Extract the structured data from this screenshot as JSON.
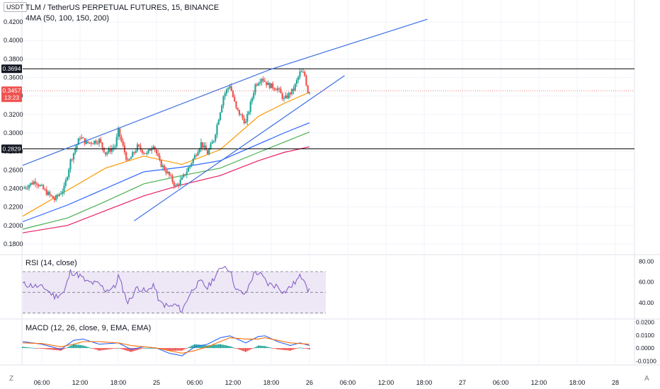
{
  "header": {
    "unit": "USDT",
    "title": "TLM / TetherUS PERPETUAL FUTURES, 15, BINANCE",
    "indicator": "4MA (50, 100, 150, 200)"
  },
  "colors": {
    "up": "#26a69a",
    "down": "#ef5350",
    "ma50": "#ff9800",
    "ma100": "#2962ff",
    "ma150": "#4caf50",
    "ma200": "#e91e63",
    "trend": "#3d6fe0",
    "rsi": "#7e57c2",
    "rsi_band": "#ede7f6",
    "macd": "#2962ff",
    "signal": "#ff6d00",
    "hist_up": "#26a69a",
    "hist_down": "#ef5350",
    "hline": "#000000",
    "last": "#ef5350"
  },
  "corner": {
    "left": "Z",
    "right": "A"
  },
  "chart_data": [
    {
      "type": "candlestick",
      "symbol": "TLM / TetherUS PERPETUAL FUTURES, 15, BINANCE",
      "ylim": [
        0.17,
        0.43
      ],
      "y_ticks": [
        "0.1800",
        "0.2000",
        "0.2200",
        "0.2400",
        "0.2600",
        "0.2800",
        "0.3000",
        "0.3200",
        "0.3400",
        "0.3600",
        "0.3800",
        "0.4000",
        "0.4200"
      ],
      "x_ticks": [
        {
          "t": 6,
          "label": "06:00"
        },
        {
          "t": 12,
          "label": "12:00"
        },
        {
          "t": 18,
          "label": "18:00"
        },
        {
          "t": 24,
          "label": "25"
        },
        {
          "t": 30,
          "label": "06:00"
        },
        {
          "t": 36,
          "label": "12:00"
        },
        {
          "t": 42,
          "label": "18:00"
        },
        {
          "t": 48,
          "label": "26"
        },
        {
          "t": 54,
          "label": "06:00"
        },
        {
          "t": 60,
          "label": "12:00"
        },
        {
          "t": 66,
          "label": "18:00"
        },
        {
          "t": 72,
          "label": "27"
        },
        {
          "t": 78,
          "label": "06:00"
        },
        {
          "t": 84,
          "label": "12:00"
        },
        {
          "t": 90,
          "label": "18:00"
        },
        {
          "t": 96,
          "label": "28"
        }
      ],
      "x_range": [
        3,
        99
      ],
      "keypoints": [
        [
          3,
          0.24
        ],
        [
          5,
          0.248
        ],
        [
          6.5,
          0.237
        ],
        [
          8,
          0.228
        ],
        [
          9.5,
          0.24
        ],
        [
          10.5,
          0.27
        ],
        [
          12,
          0.296
        ],
        [
          13,
          0.289
        ],
        [
          15,
          0.292
        ],
        [
          16,
          0.278
        ],
        [
          17.5,
          0.286
        ],
        [
          18,
          0.302
        ],
        [
          19.5,
          0.268
        ],
        [
          21,
          0.285
        ],
        [
          22.5,
          0.277
        ],
        [
          23.5,
          0.288
        ],
        [
          24.5,
          0.268
        ],
        [
          26,
          0.254
        ],
        [
          27,
          0.242
        ],
        [
          28,
          0.25
        ],
        [
          29,
          0.262
        ],
        [
          30,
          0.275
        ],
        [
          31,
          0.289
        ],
        [
          32,
          0.278
        ],
        [
          33,
          0.293
        ],
        [
          34.5,
          0.34
        ],
        [
          35.5,
          0.352
        ],
        [
          36.5,
          0.326
        ],
        [
          38,
          0.311
        ],
        [
          38.7,
          0.33
        ],
        [
          39.5,
          0.352
        ],
        [
          40.5,
          0.36
        ],
        [
          41.5,
          0.352
        ],
        [
          43,
          0.348
        ],
        [
          44,
          0.336
        ],
        [
          45.5,
          0.347
        ],
        [
          46.5,
          0.365
        ],
        [
          47.2,
          0.364
        ],
        [
          47.8,
          0.343
        ],
        [
          48,
          0.3457
        ]
      ],
      "overlays": {
        "ma50": [
          [
            3,
            0.21
          ],
          [
            10,
            0.238
          ],
          [
            16,
            0.262
          ],
          [
            22,
            0.275
          ],
          [
            28,
            0.266
          ],
          [
            34,
            0.282
          ],
          [
            40,
            0.318
          ],
          [
            44,
            0.332
          ],
          [
            48,
            0.344
          ]
        ],
        "ma100": [
          [
            3,
            0.204
          ],
          [
            10,
            0.222
          ],
          [
            16,
            0.24
          ],
          [
            22,
            0.258
          ],
          [
            28,
            0.263
          ],
          [
            34,
            0.27
          ],
          [
            40,
            0.288
          ],
          [
            44,
            0.3
          ],
          [
            48,
            0.311
          ]
        ],
        "ma150": [
          [
            3,
            0.196
          ],
          [
            10,
            0.208
          ],
          [
            16,
            0.226
          ],
          [
            22,
            0.245
          ],
          [
            28,
            0.254
          ],
          [
            34,
            0.262
          ],
          [
            40,
            0.279
          ],
          [
            44,
            0.29
          ],
          [
            48,
            0.301
          ]
        ],
        "ma200": [
          [
            3,
            0.192
          ],
          [
            10,
            0.2
          ],
          [
            16,
            0.216
          ],
          [
            22,
            0.232
          ],
          [
            28,
            0.244
          ],
          [
            34,
            0.254
          ],
          [
            40,
            0.27
          ],
          [
            44,
            0.279
          ],
          [
            48,
            0.285
          ]
        ]
      },
      "trend_lines": [
        [
          [
            3,
            0.265
          ],
          [
            42,
            0.369
          ]
        ],
        [
          [
            42,
            0.369
          ],
          [
            66.5,
            0.423
          ]
        ],
        [
          [
            20.5,
            0.205
          ],
          [
            53.5,
            0.362
          ]
        ]
      ],
      "horizontal_lines": [
        0.3694,
        0.2829
      ],
      "price_labels": [
        {
          "value": 0.3694,
          "text": "0.3694",
          "style": "dark"
        },
        {
          "value": 0.3457,
          "text": "0.3457",
          "sub": "13:23",
          "style": "last"
        },
        {
          "value": 0.2829,
          "text": "0.2829",
          "style": "dark"
        }
      ],
      "last_price": 0.3457
    },
    {
      "type": "line",
      "name": "RSI (14, close)",
      "ylim": [
        25,
        85
      ],
      "y_ticks": [
        "40.00",
        "60.00",
        "80.00"
      ],
      "band": [
        30,
        70
      ],
      "mid": 50,
      "keypoints": [
        [
          3,
          58
        ],
        [
          5,
          56
        ],
        [
          6.5,
          54
        ],
        [
          8,
          46
        ],
        [
          9.5,
          50
        ],
        [
          10.5,
          70
        ],
        [
          12,
          66
        ],
        [
          13,
          60
        ],
        [
          15,
          58
        ],
        [
          16,
          52
        ],
        [
          17.5,
          55
        ],
        [
          18,
          66
        ],
        [
          19.5,
          40
        ],
        [
          21,
          55
        ],
        [
          22.5,
          50
        ],
        [
          23.5,
          58
        ],
        [
          24.5,
          40
        ],
        [
          26,
          36
        ],
        [
          27,
          38
        ],
        [
          28,
          32
        ],
        [
          29,
          46
        ],
        [
          30,
          56
        ],
        [
          31,
          60
        ],
        [
          32,
          54
        ],
        [
          33,
          64
        ],
        [
          34.5,
          76
        ],
        [
          35.5,
          72
        ],
        [
          36.5,
          52
        ],
        [
          38,
          48
        ],
        [
          38.7,
          60
        ],
        [
          39.5,
          70
        ],
        [
          40.5,
          66
        ],
        [
          41.5,
          58
        ],
        [
          43,
          56
        ],
        [
          44,
          50
        ],
        [
          45.5,
          58
        ],
        [
          46.5,
          65
        ],
        [
          47.2,
          64
        ],
        [
          47.8,
          52
        ],
        [
          48,
          51
        ]
      ]
    },
    {
      "type": "line",
      "name": "MACD (12, 26, close, 9, EMA, EMA)",
      "ylim": [
        -0.012,
        0.022
      ],
      "y_ticks": [
        "-0.0100",
        "0.0000",
        "0.0100",
        "0.0200"
      ],
      "macd": [
        [
          3,
          0.005
        ],
        [
          6,
          0.003
        ],
        [
          9,
          -0.001
        ],
        [
          11,
          0.006
        ],
        [
          12.5,
          0.007
        ],
        [
          15,
          0.003
        ],
        [
          18,
          0.004
        ],
        [
          20,
          -0.001
        ],
        [
          22,
          0.001
        ],
        [
          24,
          0.0
        ],
        [
          26,
          -0.004
        ],
        [
          28,
          -0.006
        ],
        [
          30,
          0.001
        ],
        [
          32,
          0.003
        ],
        [
          34,
          0.008
        ],
        [
          35.5,
          0.0095
        ],
        [
          38,
          0.004
        ],
        [
          40,
          0.009
        ],
        [
          41,
          0.0095
        ],
        [
          43,
          0.005
        ],
        [
          45,
          0.002
        ],
        [
          46.5,
          0.004
        ],
        [
          48,
          0.002
        ]
      ],
      "signal": [
        [
          3,
          0.004
        ],
        [
          6,
          0.0035
        ],
        [
          9,
          0.001
        ],
        [
          11,
          0.003
        ],
        [
          12.5,
          0.005
        ],
        [
          15,
          0.005
        ],
        [
          18,
          0.004
        ],
        [
          20,
          0.002
        ],
        [
          22,
          0.001
        ],
        [
          24,
          0.0
        ],
        [
          26,
          -0.002
        ],
        [
          28,
          -0.004
        ],
        [
          30,
          -0.002
        ],
        [
          32,
          0.001
        ],
        [
          34,
          0.005
        ],
        [
          35.5,
          0.008
        ],
        [
          38,
          0.007
        ],
        [
          40,
          0.007
        ],
        [
          41,
          0.008
        ],
        [
          43,
          0.006
        ],
        [
          45,
          0.004
        ],
        [
          46.5,
          0.0035
        ],
        [
          48,
          0.003
        ]
      ]
    }
  ]
}
